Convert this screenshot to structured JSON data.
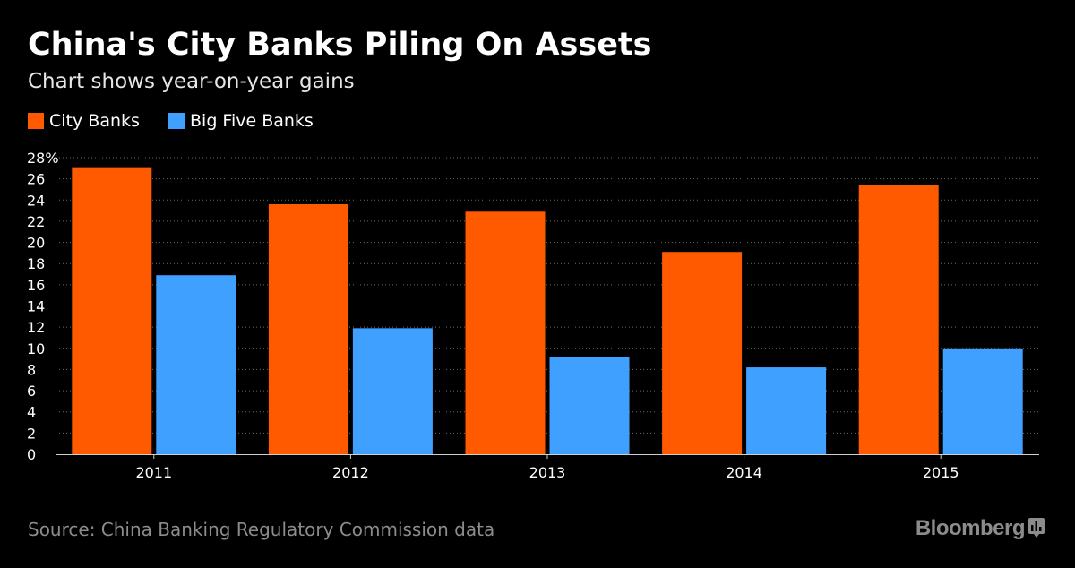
{
  "header": {
    "title": "China's City Banks Piling On Assets",
    "subtitle": "Chart shows year-on-year gains"
  },
  "footer": {
    "source": "Source: China Banking Regulatory Commission data",
    "brand": "Bloomberg"
  },
  "colors": {
    "city": "#ff5a00",
    "bigfive": "#40a0ff",
    "background": "#000000"
  },
  "chart_data": {
    "type": "bar",
    "title": "China's City Banks Piling On Assets",
    "subtitle": "Chart shows year-on-year gains",
    "xlabel": "",
    "ylabel": "",
    "categories": [
      "2011",
      "2012",
      "2013",
      "2014",
      "2015"
    ],
    "series": [
      {
        "name": "City Banks",
        "values": [
          27.1,
          23.6,
          22.9,
          19.1,
          25.4
        ]
      },
      {
        "name": "Big Five Banks",
        "values": [
          16.9,
          11.9,
          9.2,
          8.2,
          10.0
        ]
      }
    ],
    "ylim": [
      0,
      28
    ],
    "yticks": [
      "0",
      "2",
      "4",
      "6",
      "8",
      "10",
      "12",
      "14",
      "16",
      "18",
      "20",
      "22",
      "24",
      "26",
      "28%"
    ],
    "grid": true,
    "legend_position": "top-left"
  }
}
